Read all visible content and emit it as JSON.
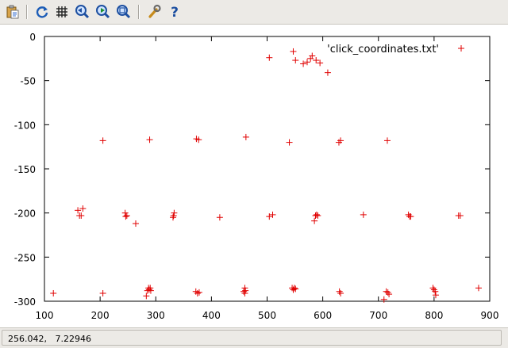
{
  "toolbar": {
    "buttons": [
      {
        "name": "export-to-clipboard",
        "icon": "clipboard-icon"
      },
      {
        "name": "replot",
        "icon": "refresh-icon"
      },
      {
        "name": "toggle-grid",
        "icon": "grid-icon"
      },
      {
        "name": "previous-zoom",
        "icon": "zoom-back-icon"
      },
      {
        "name": "next-zoom",
        "icon": "zoom-forward-icon"
      },
      {
        "name": "autoscale",
        "icon": "zoom-fit-icon"
      },
      {
        "name": "settings",
        "icon": "wrench-icon"
      },
      {
        "name": "help",
        "icon": "help-icon"
      }
    ]
  },
  "status": {
    "coordinates": "256.042,   7.22946"
  },
  "colors": {
    "points": "#e00000",
    "axis": "#000000",
    "toolbar_bg": "#eceae6"
  },
  "chart_data": {
    "type": "scatter",
    "title": "",
    "xlabel": "",
    "ylabel": "",
    "xlim": [
      100,
      900
    ],
    "ylim": [
      -300,
      0
    ],
    "xticks": [
      "100",
      "200",
      "300",
      "400",
      "500",
      "600",
      "700",
      "800",
      "900"
    ],
    "yticks": [
      "0",
      "-50",
      "-100",
      "-150",
      "-200",
      "-250",
      "-300"
    ],
    "xtick_values": [
      100,
      200,
      300,
      400,
      500,
      600,
      700,
      800,
      900
    ],
    "ytick_values": [
      0,
      -50,
      -100,
      -150,
      -200,
      -250,
      -300
    ],
    "grid": false,
    "legend_position": "top-right",
    "series": [
      {
        "name": "'click_coordinates.txt'",
        "marker": "plus",
        "color": "#e00000",
        "points": [
          [
            504,
            -24
          ],
          [
            547,
            -17
          ],
          [
            551,
            -27
          ],
          [
            565,
            -31
          ],
          [
            572,
            -29
          ],
          [
            578,
            -25
          ],
          [
            581,
            -22
          ],
          [
            588,
            -27
          ],
          [
            595,
            -30
          ],
          [
            609,
            -41
          ],
          [
            205,
            -118
          ],
          [
            289,
            -117
          ],
          [
            373,
            -116
          ],
          [
            377,
            -117
          ],
          [
            462,
            -114
          ],
          [
            540,
            -120
          ],
          [
            629,
            -120
          ],
          [
            632,
            -118
          ],
          [
            716,
            -118
          ],
          [
            160,
            -197
          ],
          [
            163,
            -203
          ],
          [
            166,
            -203
          ],
          [
            169,
            -195
          ],
          [
            245,
            -200
          ],
          [
            246,
            -204
          ],
          [
            248,
            -203
          ],
          [
            264,
            -212
          ],
          [
            331,
            -205
          ],
          [
            332,
            -203
          ],
          [
            333,
            -200
          ],
          [
            415,
            -205
          ],
          [
            504,
            -204
          ],
          [
            510,
            -202
          ],
          [
            585,
            -209
          ],
          [
            587,
            -203
          ],
          [
            589,
            -202
          ],
          [
            591,
            -203
          ],
          [
            673,
            -202
          ],
          [
            754,
            -202
          ],
          [
            756,
            -204
          ],
          [
            758,
            -204
          ],
          [
            844,
            -203
          ],
          [
            847,
            -203
          ],
          [
            116,
            -291
          ],
          [
            205,
            -291
          ],
          [
            283,
            -294
          ],
          [
            285,
            -288
          ],
          [
            287,
            -285
          ],
          [
            288,
            -287
          ],
          [
            290,
            -285
          ],
          [
            291,
            -288
          ],
          [
            372,
            -289
          ],
          [
            375,
            -291
          ],
          [
            378,
            -290
          ],
          [
            458,
            -289
          ],
          [
            460,
            -285
          ],
          [
            461,
            -288
          ],
          [
            460,
            -291
          ],
          [
            545,
            -285
          ],
          [
            547,
            -287
          ],
          [
            549,
            -285
          ],
          [
            551,
            -286
          ],
          [
            630,
            -289
          ],
          [
            632,
            -291
          ],
          [
            710,
            -298
          ],
          [
            714,
            -289
          ],
          [
            717,
            -290
          ],
          [
            719,
            -292
          ],
          [
            798,
            -285
          ],
          [
            800,
            -287
          ],
          [
            802,
            -289
          ],
          [
            803,
            -293
          ],
          [
            880,
            -285
          ]
        ]
      }
    ]
  }
}
